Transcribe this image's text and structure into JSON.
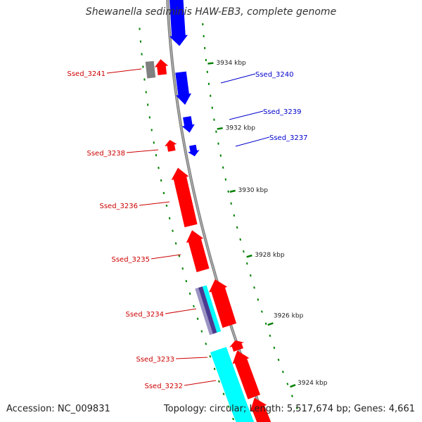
{
  "title": "Shewanella sediminis HAW-EB3, complete genome",
  "footer": {
    "accession": "Accession: NC_009831",
    "topology": "Topology: circular;",
    "length": "Length: 5,517,674 bp;",
    "genes": "Genes: 4,661"
  },
  "colors": {
    "forward_gene": "#ff0000",
    "reverse_gene": "#0000ff",
    "rna_gene": "#00ffff",
    "pseudo_gene": "#808080",
    "tick": "#008000",
    "backbone": "#808080",
    "label_forward": "#cc0000",
    "label_reverse": "#0000cc"
  },
  "scale_labels": [
    {
      "text": "3934 kbp"
    },
    {
      "text": "3932 kbp"
    },
    {
      "text": "3930 kbp"
    },
    {
      "text": "3928 kbp"
    },
    {
      "text": "3926 kbp"
    },
    {
      "text": "3924 kbp"
    }
  ],
  "gene_labels": {
    "left": [
      "Ssed_3241",
      "Ssed_3238",
      "Ssed_3236",
      "Ssed_3235",
      "Ssed_3234",
      "Ssed_3233",
      "Ssed_3232"
    ],
    "right": [
      "Ssed_3240",
      "Ssed_3239",
      "Ssed_3237"
    ]
  }
}
